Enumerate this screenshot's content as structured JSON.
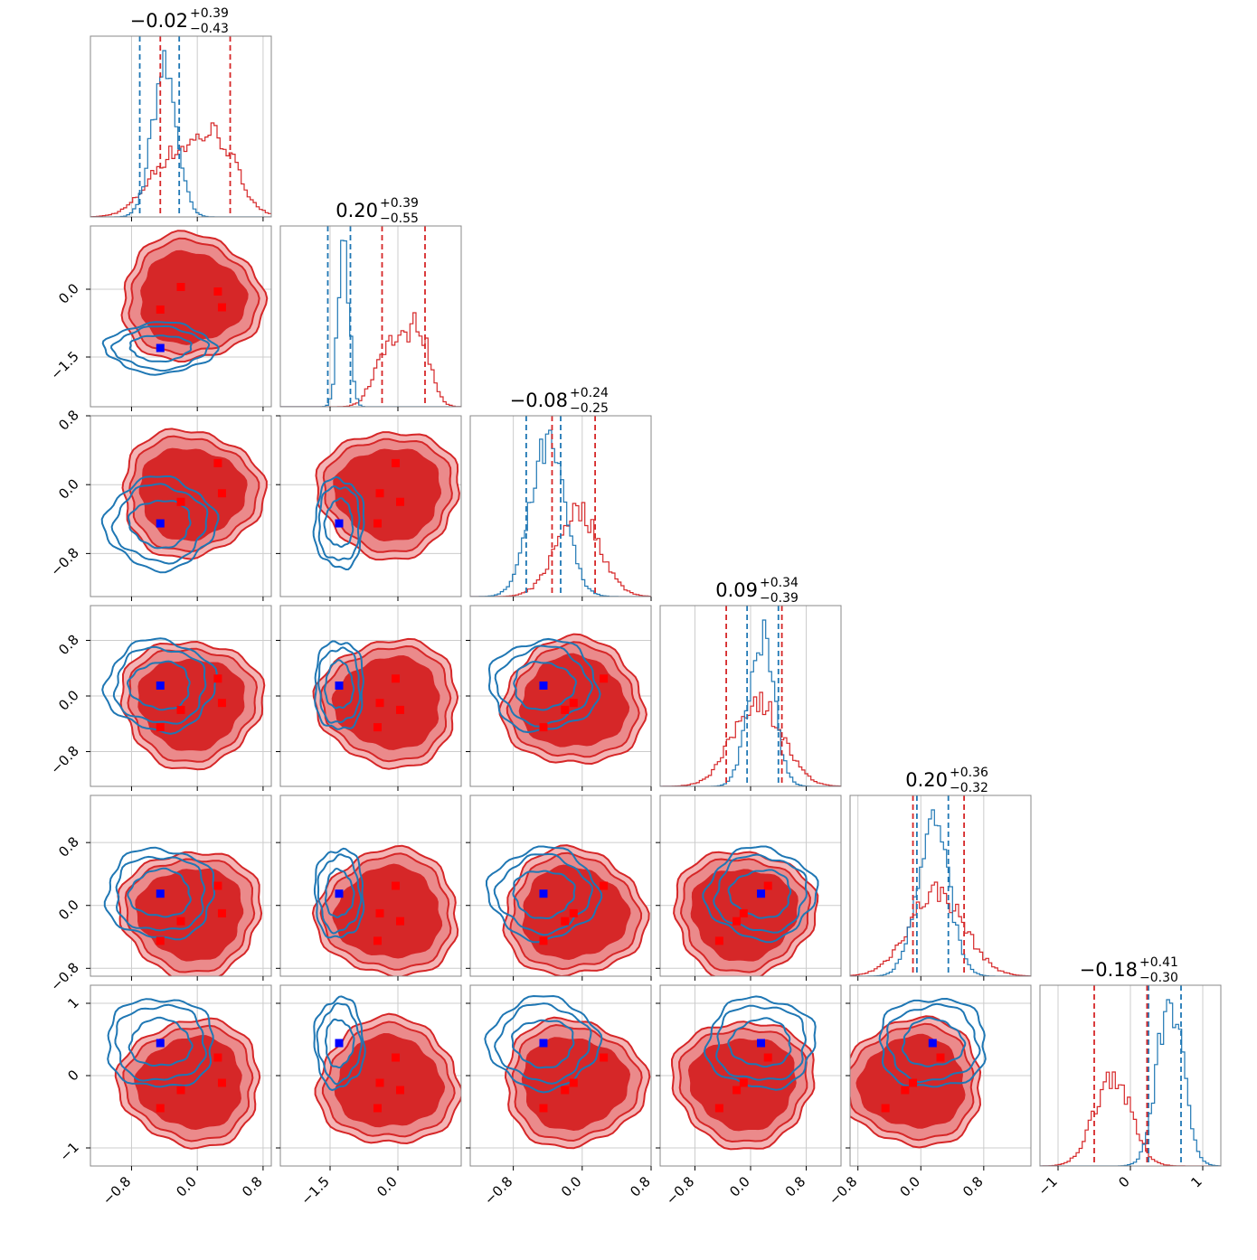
{
  "chart_data": {
    "type": "corner",
    "parameters": 6,
    "colors": {
      "reference": "#1f77b4",
      "posterior": "#d62728",
      "reference_marker": "#0000ff",
      "posterior_marker": "#ff0000"
    },
    "grid": true,
    "titles": [
      {
        "median": "−0.02",
        "plus": "+0.39",
        "minus": "−0.43"
      },
      {
        "median": "0.20",
        "plus": "+0.39",
        "minus": "−0.55"
      },
      {
        "median": "−0.08",
        "plus": "+0.24",
        "minus": "−0.25"
      },
      {
        "median": "0.09",
        "plus": "+0.34",
        "minus": "−0.39"
      },
      {
        "median": "0.20",
        "plus": "+0.36",
        "minus": "−0.32"
      },
      {
        "median": "−0.18",
        "plus": "+0.41",
        "minus": "−0.30"
      }
    ],
    "ranges": [
      [
        -1.3,
        0.9
      ],
      [
        -2.6,
        1.4
      ],
      [
        -1.3,
        0.8
      ],
      [
        -1.3,
        1.3
      ],
      [
        -0.9,
        1.4
      ],
      [
        -1.25,
        1.25
      ]
    ],
    "ticks": [
      [
        -0.8,
        0.0,
        0.8
      ],
      [
        -1.5,
        0.0
      ],
      [
        -0.8,
        0.0,
        0.8
      ],
      [
        -0.8,
        0.0,
        0.8
      ],
      [
        -0.8,
        0.0,
        0.8
      ],
      [
        -1,
        0,
        1
      ]
    ],
    "tick_labels": [
      [
        "−0.8",
        "0.0",
        "0.8"
      ],
      [
        "−1.5",
        "0.0"
      ],
      [
        "−0.8",
        "0.0",
        "0.8"
      ],
      [
        "−0.8",
        "0.0",
        "0.8"
      ],
      [
        "−0.8",
        "0.0",
        "0.8"
      ],
      [
        "−1",
        "0",
        "1"
      ]
    ],
    "reference_point": [
      -0.45,
      -1.3,
      -0.45,
      0.15,
      0.15,
      0.45
    ],
    "posterior_modes": [
      [
        -0.45,
        -0.2,
        0.25,
        0.3
      ],
      [
        -0.45,
        0.05,
        -0.05,
        -0.4
      ],
      [
        -0.45,
        -0.2,
        0.25,
        -0.1
      ],
      [
        -0.45,
        -0.2,
        0.25,
        -0.1
      ],
      [
        -0.45,
        -0.2,
        0.25,
        -0.1
      ],
      [
        -0.45,
        -0.2,
        0.25,
        -0.1
      ]
    ],
    "histograms": [
      {
        "blue": {
          "mean": -0.4,
          "sd": 0.15
        },
        "red": {
          "comps": [
            {
              "mu": -0.3,
              "sd": 0.3,
              "w": 0.45
            },
            {
              "mu": 0.25,
              "sd": 0.25,
              "w": 0.55
            }
          ]
        },
        "blue_q": [
          -0.7,
          -0.22
        ],
        "red_q": [
          -0.45,
          0.4
        ]
      },
      {
        "blue": {
          "mean": -1.2,
          "sd": 0.12
        },
        "red": {
          "comps": [
            {
              "mu": -0.2,
              "sd": 0.3,
              "w": 0.45
            },
            {
              "mu": 0.45,
              "sd": 0.25,
              "w": 0.55
            }
          ]
        },
        "blue_q": [
          -1.55,
          -1.05
        ],
        "red_q": [
          -0.35,
          0.6
        ]
      },
      {
        "blue": {
          "mean": -0.4,
          "sd": 0.2
        },
        "red": {
          "comps": [
            {
              "mu": -0.05,
              "sd": 0.25,
              "w": 1.0
            }
          ]
        },
        "blue_q": [
          -0.65,
          -0.25
        ],
        "red_q": [
          -0.35,
          0.15
        ]
      },
      {
        "blue": {
          "mean": 0.15,
          "sd": 0.18
        },
        "red": {
          "comps": [
            {
              "mu": 0.1,
              "sd": 0.35,
              "w": 1.0
            }
          ]
        },
        "blue_q": [
          -0.05,
          0.4
        ],
        "red_q": [
          -0.35,
          0.45
        ]
      },
      {
        "blue": {
          "mean": 0.15,
          "sd": 0.2
        },
        "red": {
          "comps": [
            {
              "mu": 0.2,
              "sd": 0.35,
              "w": 1.0
            }
          ]
        },
        "blue_q": [
          -0.05,
          0.35
        ],
        "red_q": [
          -0.1,
          0.55
        ]
      },
      {
        "blue": {
          "mean": 0.55,
          "sd": 0.18
        },
        "red": {
          "comps": [
            {
              "mu": -0.25,
              "sd": 0.25,
              "w": 1.0
            }
          ]
        },
        "blue_q": [
          0.25,
          0.7
        ],
        "red_q": [
          -0.5,
          0.23
        ]
      }
    ]
  }
}
